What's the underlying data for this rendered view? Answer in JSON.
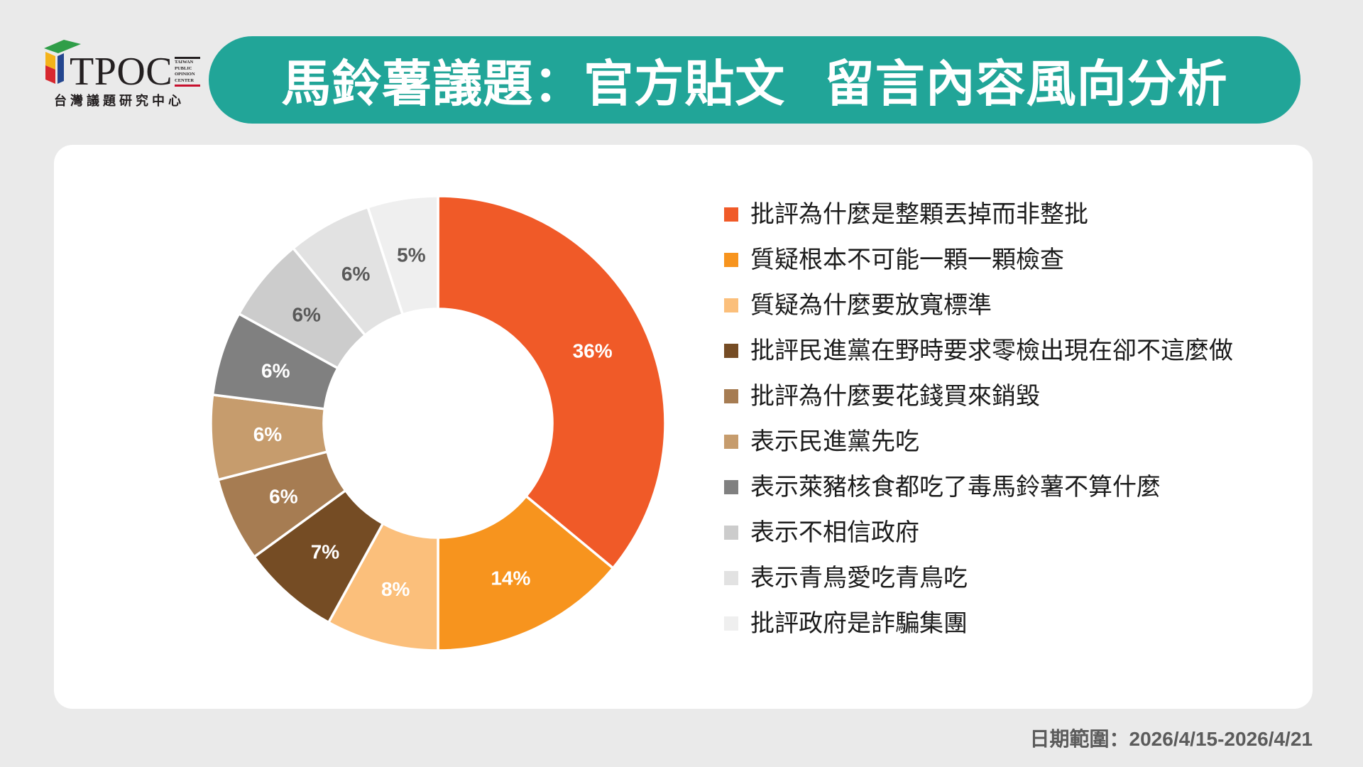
{
  "logo": {
    "wordmark": "TPOC",
    "english_lines": [
      "TAIWAN",
      "PUBLIC",
      "OPINION",
      "CENTER"
    ],
    "chinese_name": "台灣議題研究中心",
    "icon": "tpoc-cube-icon",
    "colors": {
      "green": "#2f9e48",
      "gold": "#f4b31a",
      "red": "#d7282f",
      "blue": "#24468f"
    }
  },
  "header": {
    "title": "馬鈴薯議題：官方貼文 留言內容風向分析",
    "background_color": "#21a598"
  },
  "chart_data": {
    "type": "pie",
    "donut": true,
    "unit": "%",
    "legend_position": "right",
    "slices": [
      {
        "label": "批評為什麼是整顆丟掉而非整批",
        "value": 36,
        "color": "#f05a28",
        "label_color": "#ffffff"
      },
      {
        "label": "質疑根本不可能一顆一顆檢查",
        "value": 14,
        "color": "#f7941e",
        "label_color": "#ffffff"
      },
      {
        "label": "質疑為什麼要放寬標準",
        "value": 8,
        "color": "#fbbf7b",
        "label_color": "#ffffff"
      },
      {
        "label": "批評民進黨在野時要求零檢出現在卻不這麼做",
        "value": 7,
        "color": "#754c24",
        "label_color": "#ffffff"
      },
      {
        "label": "批評為什麼要花錢買來銷毀",
        "value": 6,
        "color": "#a67c52",
        "label_color": "#ffffff"
      },
      {
        "label": "表示民進黨先吃",
        "value": 6,
        "color": "#c69c6d",
        "label_color": "#ffffff"
      },
      {
        "label": "表示萊豬核食都吃了毒馬鈴薯不算什麼",
        "value": 6,
        "color": "#808080",
        "label_color": "#ffffff"
      },
      {
        "label": "表示不相信政府",
        "value": 6,
        "color": "#cccccc",
        "label_color": "#595959"
      },
      {
        "label": "表示青鳥愛吃青鳥吃",
        "value": 6,
        "color": "#e2e2e2",
        "label_color": "#595959"
      },
      {
        "label": "批評政府是詐騙集團",
        "value": 5,
        "color": "#efefef",
        "label_color": "#595959"
      }
    ]
  },
  "footer": {
    "date_range": "日期範圍：2026/4/15-2026/4/21"
  }
}
